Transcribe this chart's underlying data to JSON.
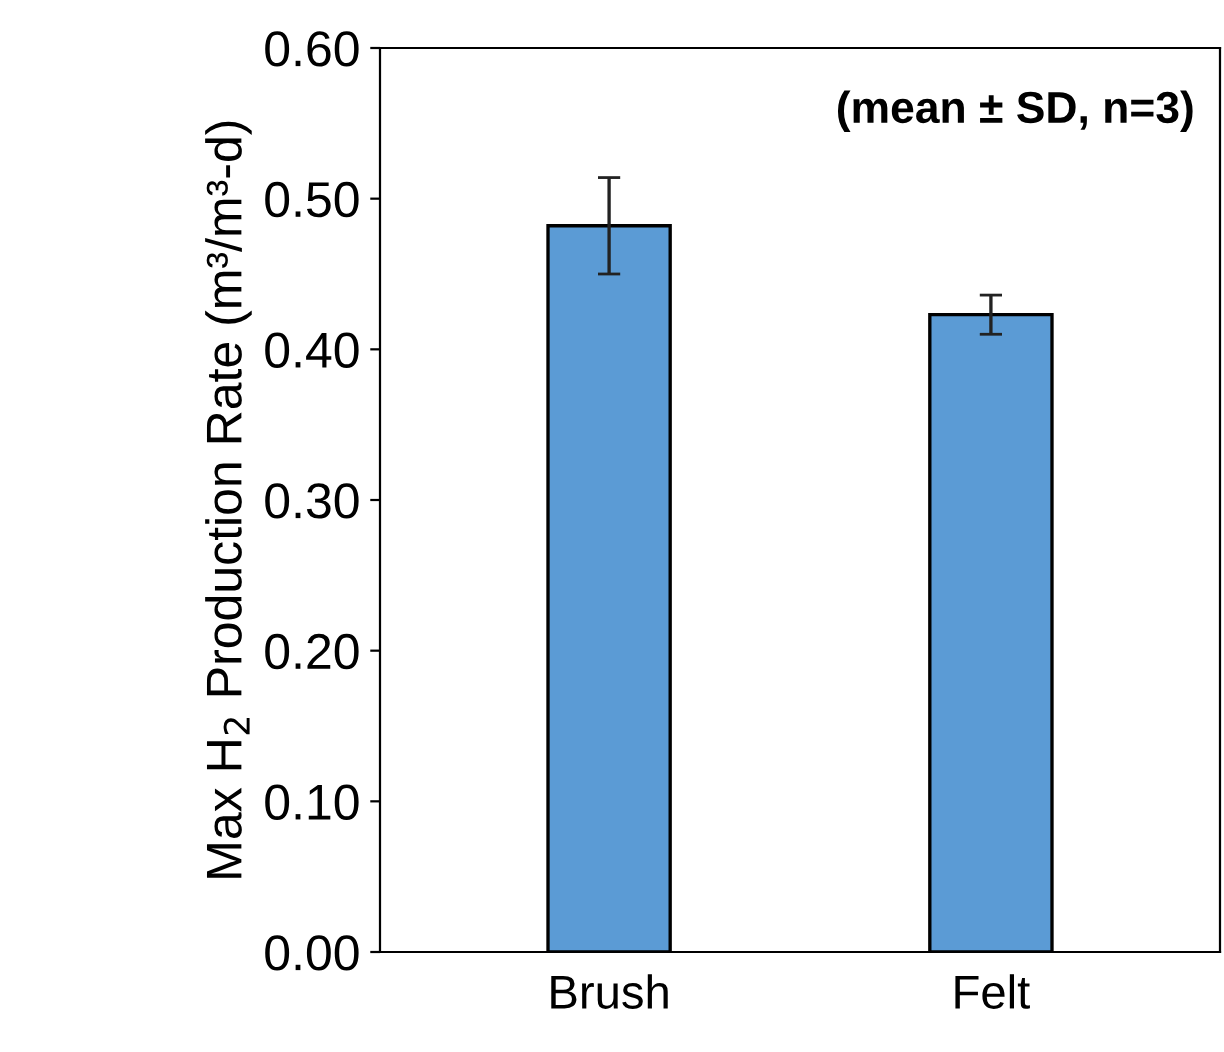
{
  "chart_data": {
    "type": "bar",
    "ylabel": "Max H$_{2}$ Production Rate (m³/m³-d)",
    "categories": [
      "Brush",
      "Felt"
    ],
    "values": [
      0.482,
      0.423
    ],
    "errors": [
      0.032,
      0.013
    ],
    "color": "#5b9bd5",
    "ylim": [
      0,
      0.6
    ],
    "yticks": [
      {
        "value": 0,
        "label": "0.00"
      },
      {
        "value": 0.1,
        "label": "0.10"
      },
      {
        "value": 0.2,
        "label": "0.20"
      },
      {
        "value": 0.3,
        "label": "0.30"
      },
      {
        "value": 0.4,
        "label": "0.40"
      },
      {
        "value": 0.5,
        "label": "0.50"
      },
      {
        "value": 0.6,
        "label": "0.60"
      }
    ],
    "annotations": [
      "(mean ± SD, n=3)"
    ],
    "grid": false
  }
}
